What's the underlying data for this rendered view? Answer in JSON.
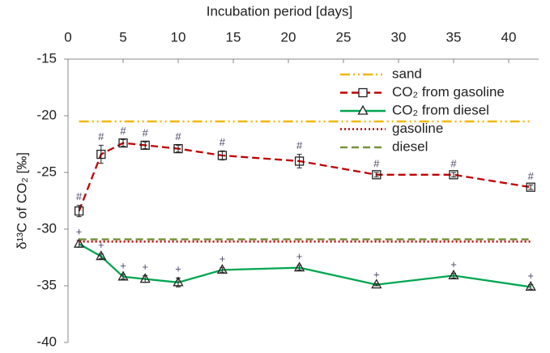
{
  "chart_data": {
    "type": "line",
    "xlabel": "Incubation period [days]",
    "ylabel": "δ¹³C of CO₂ [‰]",
    "xlim": [
      0,
      43
    ],
    "xticks": [
      0,
      5,
      10,
      15,
      20,
      25,
      30,
      35,
      40
    ],
    "ylim": [
      -40,
      -15
    ],
    "yticks": [
      -15,
      -20,
      -25,
      -30,
      -35,
      -40
    ],
    "legend": "upper right",
    "x": [
      1,
      3,
      5,
      7,
      10,
      14,
      21,
      28,
      35,
      42
    ],
    "series": [
      {
        "name": "sand",
        "kind": "hline",
        "value": -20.5,
        "color": "#f2b705",
        "dash": "dashdotdot"
      },
      {
        "name": "CO₂ from gasoline",
        "kind": "points",
        "marker": "square",
        "color": "#c00000",
        "dash": "dashed",
        "values": [
          -28.4,
          -23.4,
          -22.4,
          -22.6,
          -22.9,
          -23.5,
          -24.0,
          -25.2,
          -25.2,
          -26.3
        ],
        "errors": [
          0.5,
          0.8,
          0.3,
          0.3,
          0.3,
          0.4,
          0.6,
          0.2,
          0.2,
          0.2
        ],
        "annotations": [
          "#",
          "#",
          "#",
          "#",
          "#",
          "#",
          "#",
          "#",
          "#",
          "#"
        ]
      },
      {
        "name": "CO₂ from diesel",
        "kind": "points",
        "marker": "triangle",
        "color": "#00a650",
        "dash": "solid",
        "values": [
          -31.3,
          -32.4,
          -34.2,
          -34.4,
          -34.7,
          -33.6,
          -33.4,
          -34.9,
          -34.1,
          -35.1
        ],
        "errors": [
          0.3,
          0.2,
          0.2,
          0.3,
          0.4,
          0.2,
          0.2,
          0.1,
          0.2,
          0.2
        ],
        "annotations": [
          "+",
          "+",
          "+",
          "+",
          "+",
          "+",
          "+",
          "+",
          "+",
          "+"
        ]
      },
      {
        "name": "gasoline",
        "kind": "hline",
        "value": -31.1,
        "color": "#c00000",
        "dash": "dotted"
      },
      {
        "name": "diesel",
        "kind": "hline",
        "value": -30.9,
        "color": "#77933c",
        "dash": "dashed"
      }
    ]
  }
}
